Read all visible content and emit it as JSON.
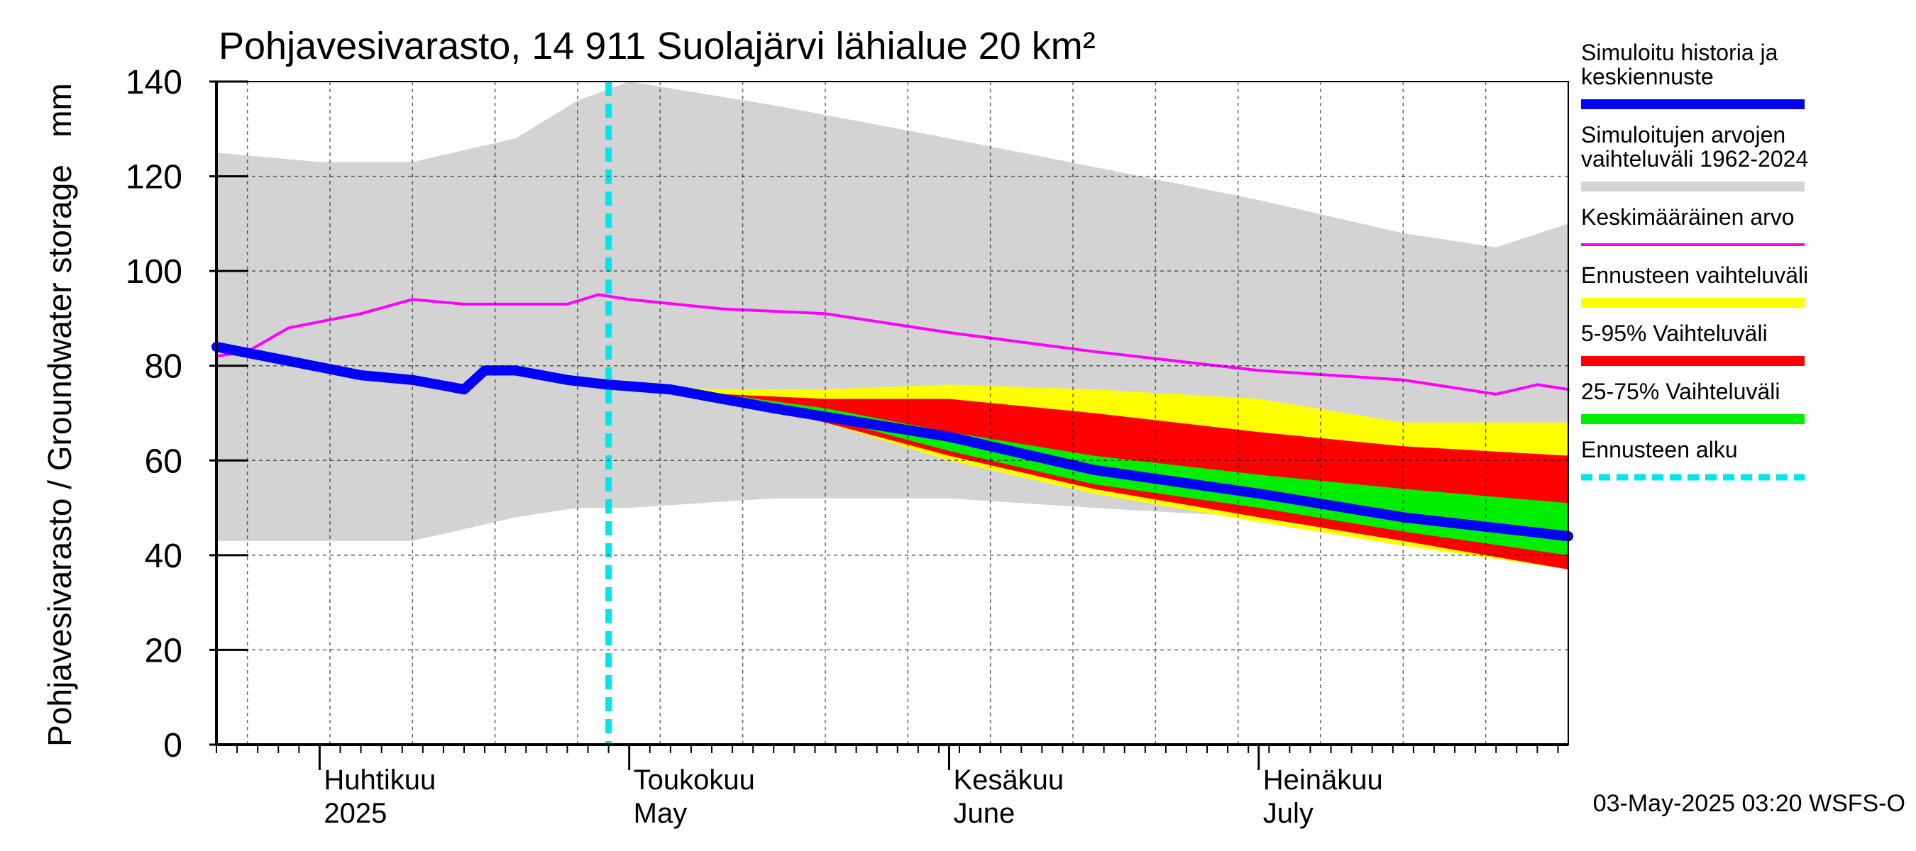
{
  "chart_data": {
    "type": "area",
    "title": "Pohjavesivarasto, 14 911 Suolajärvi lähialue 20 km²",
    "ylabel": "Pohjavesivarasto / Groundwater storage   mm",
    "ylim": [
      0,
      140
    ],
    "yticks": [
      0,
      20,
      40,
      60,
      80,
      100,
      120,
      140
    ],
    "xlim": [
      "2025-03-22",
      "2025-07-31"
    ],
    "month_labels": [
      {
        "date": "2025-04-01",
        "fi": "Huhtikuu",
        "en": "2025"
      },
      {
        "date": "2025-05-01",
        "fi": "Toukokuu",
        "en": "May"
      },
      {
        "date": "2025-06-01",
        "fi": "Kesäkuu",
        "en": "June"
      },
      {
        "date": "2025-07-01",
        "fi": "Heinäkuu",
        "en": "July"
      }
    ],
    "forecast_start": "2025-04-29",
    "timestamp": "03-May-2025 03:20 WSFS-O",
    "grid": true,
    "legend_position": "right",
    "series": [
      {
        "name": "Simuloitujen arvojen vaihteluväli 1962-2024",
        "kind": "band",
        "color": "#d3d3d3",
        "x": [
          "2025-03-22",
          "2025-04-01",
          "2025-04-10",
          "2025-04-20",
          "2025-04-26",
          "2025-05-01",
          "2025-05-15",
          "2025-06-01",
          "2025-06-15",
          "2025-07-01",
          "2025-07-15",
          "2025-07-24",
          "2025-07-31"
        ],
        "upper": [
          125,
          123,
          123,
          128,
          136,
          140,
          135,
          128,
          122,
          115,
          108,
          105,
          110
        ],
        "lower": [
          43,
          43,
          43,
          48,
          50,
          50,
          52,
          52,
          50,
          48,
          46,
          45,
          44
        ]
      },
      {
        "name": "Ennusteen vaihteluväli",
        "kind": "band",
        "color": "#ffff00",
        "x": [
          "2025-04-29",
          "2025-05-10",
          "2025-05-20",
          "2025-06-01",
          "2025-06-15",
          "2025-07-01",
          "2025-07-15",
          "2025-07-31"
        ],
        "upper": [
          76,
          75,
          75,
          76,
          75,
          73,
          68,
          68
        ],
        "lower": [
          76,
          73,
          68,
          60,
          53,
          47,
          42,
          37
        ]
      },
      {
        "name": "5-95% Vaihteluväli",
        "kind": "band",
        "color": "#ff0000",
        "x": [
          "2025-04-29",
          "2025-05-10",
          "2025-05-20",
          "2025-06-01",
          "2025-06-15",
          "2025-07-01",
          "2025-07-15",
          "2025-07-31"
        ],
        "upper": [
          76,
          74,
          73,
          73,
          70,
          66,
          63,
          61
        ],
        "lower": [
          76,
          73,
          68,
          61,
          54,
          48,
          43,
          37
        ]
      },
      {
        "name": "25-75% Vaihteluväli",
        "kind": "band",
        "color": "#00ee00",
        "x": [
          "2025-04-29",
          "2025-05-10",
          "2025-05-20",
          "2025-06-01",
          "2025-06-15",
          "2025-07-01",
          "2025-07-15",
          "2025-07-31"
        ],
        "upper": [
          76,
          74,
          71,
          66,
          61,
          57,
          54,
          51
        ],
        "lower": [
          76,
          73,
          69,
          62,
          55,
          50,
          45,
          40
        ]
      },
      {
        "name": "Keskimääräinen arvo",
        "kind": "line",
        "color": "#ff00ff",
        "x": [
          "2025-03-22",
          "2025-03-25",
          "2025-03-29",
          "2025-04-05",
          "2025-04-10",
          "2025-04-15",
          "2025-04-20",
          "2025-04-25",
          "2025-04-28",
          "2025-05-01",
          "2025-05-10",
          "2025-05-20",
          "2025-06-01",
          "2025-06-15",
          "2025-07-01",
          "2025-07-15",
          "2025-07-24",
          "2025-07-28",
          "2025-07-31"
        ],
        "values": [
          82,
          83,
          88,
          91,
          94,
          93,
          93,
          93,
          95,
          94,
          92,
          91,
          87,
          83,
          79,
          77,
          74,
          76,
          75
        ]
      },
      {
        "name": "Simuloitu historia ja keskiennuste",
        "kind": "line",
        "color": "#0000ff",
        "x": [
          "2025-03-22",
          "2025-03-29",
          "2025-04-05",
          "2025-04-10",
          "2025-04-15",
          "2025-04-17",
          "2025-04-20",
          "2025-04-25",
          "2025-04-29",
          "2025-05-05",
          "2025-05-15",
          "2025-06-01",
          "2025-06-15",
          "2025-07-01",
          "2025-07-15",
          "2025-07-31"
        ],
        "values": [
          84,
          81,
          78,
          77,
          75,
          79,
          79,
          77,
          76,
          75,
          71,
          65,
          58,
          53,
          48,
          44
        ]
      },
      {
        "name": "Ennusteen alku",
        "kind": "vline",
        "color": "#00e5ee",
        "x": [
          "2025-04-29"
        ]
      }
    ],
    "legend": [
      {
        "label": "Simuloitu historia ja\nkeskiennuste",
        "color": "#0000ff",
        "style": "thick"
      },
      {
        "label": "Simuloitujen arvojen\nvaihteluväli 1962-2024",
        "color": "#d3d3d3",
        "style": "thick"
      },
      {
        "label": "Keskimääräinen arvo",
        "color": "#ff00ff",
        "style": "thin"
      },
      {
        "label": "Ennusteen vaihteluväli",
        "color": "#ffff00",
        "style": "thick"
      },
      {
        "label": "5-95% Vaihteluväli",
        "color": "#ff0000",
        "style": "thick"
      },
      {
        "label": "25-75% Vaihteluväli",
        "color": "#00ee00",
        "style": "thick"
      },
      {
        "label": "Ennusteen alku",
        "color": "#00e5ee",
        "style": "dashed"
      }
    ]
  }
}
